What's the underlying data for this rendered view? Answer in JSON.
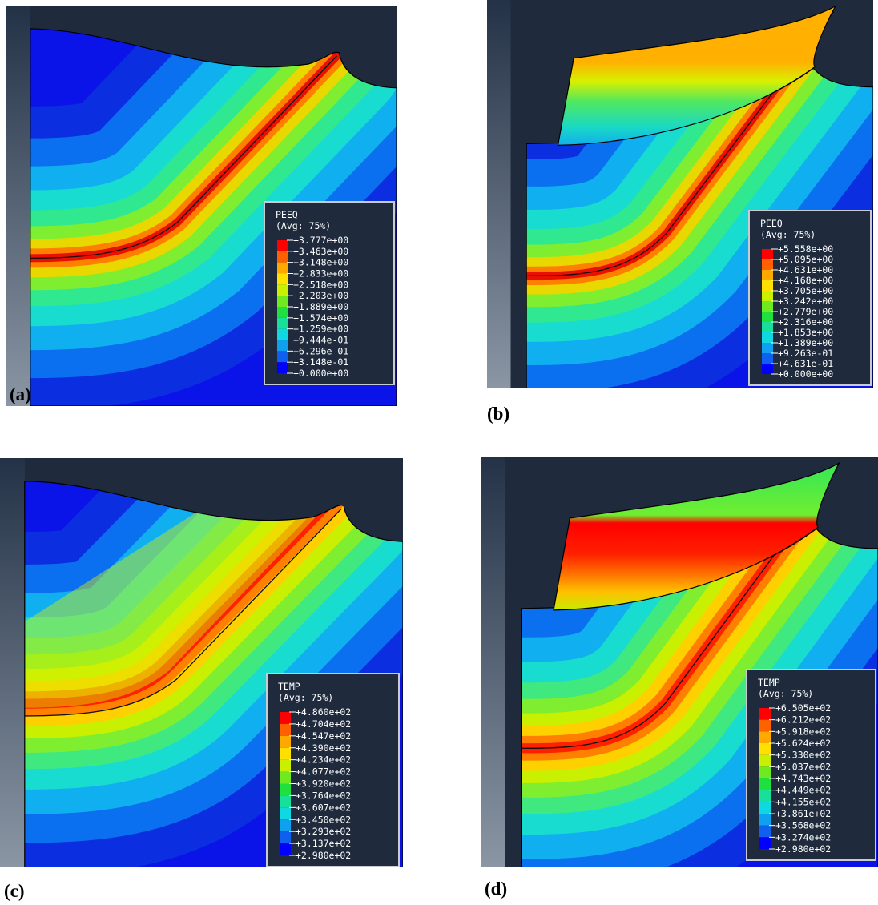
{
  "panels": [
    {
      "label": "(a)",
      "legend": {
        "title": "PEEQ",
        "subtitle": "(Avg: 75%)",
        "values": [
          "+3.777e+00",
          "+3.463e+00",
          "+3.148e+00",
          "+2.833e+00",
          "+2.518e+00",
          "+2.203e+00",
          "+1.889e+00",
          "+1.574e+00",
          "+1.259e+00",
          "+9.444e-01",
          "+6.296e-01",
          "+3.148e-01",
          "+0.000e+00"
        ]
      }
    },
    {
      "label": "(b)",
      "legend": {
        "title": "PEEQ",
        "subtitle": "(Avg: 75%)",
        "values": [
          "+5.558e+00",
          "+5.095e+00",
          "+4.631e+00",
          "+4.168e+00",
          "+3.705e+00",
          "+3.242e+00",
          "+2.779e+00",
          "+2.316e+00",
          "+1.853e+00",
          "+1.389e+00",
          "+9.263e-01",
          "+4.631e-01",
          "+0.000e+00"
        ]
      }
    },
    {
      "label": "(c)",
      "legend": {
        "title": "TEMP",
        "subtitle": "(Avg: 75%)",
        "values": [
          "+4.860e+02",
          "+4.704e+02",
          "+4.547e+02",
          "+4.390e+02",
          "+4.234e+02",
          "+4.077e+02",
          "+3.920e+02",
          "+3.764e+02",
          "+3.607e+02",
          "+3.450e+02",
          "+3.293e+02",
          "+3.137e+02",
          "+2.980e+02"
        ]
      }
    },
    {
      "label": "(d)",
      "legend": {
        "title": "TEMP",
        "subtitle": "(Avg: 75%)",
        "values": [
          "+6.505e+02",
          "+6.212e+02",
          "+5.918e+02",
          "+5.624e+02",
          "+5.330e+02",
          "+5.037e+02",
          "+4.743e+02",
          "+4.449e+02",
          "+4.155e+02",
          "+3.861e+02",
          "+3.568e+02",
          "+3.274e+02",
          "+2.980e+02"
        ]
      }
    }
  ]
}
